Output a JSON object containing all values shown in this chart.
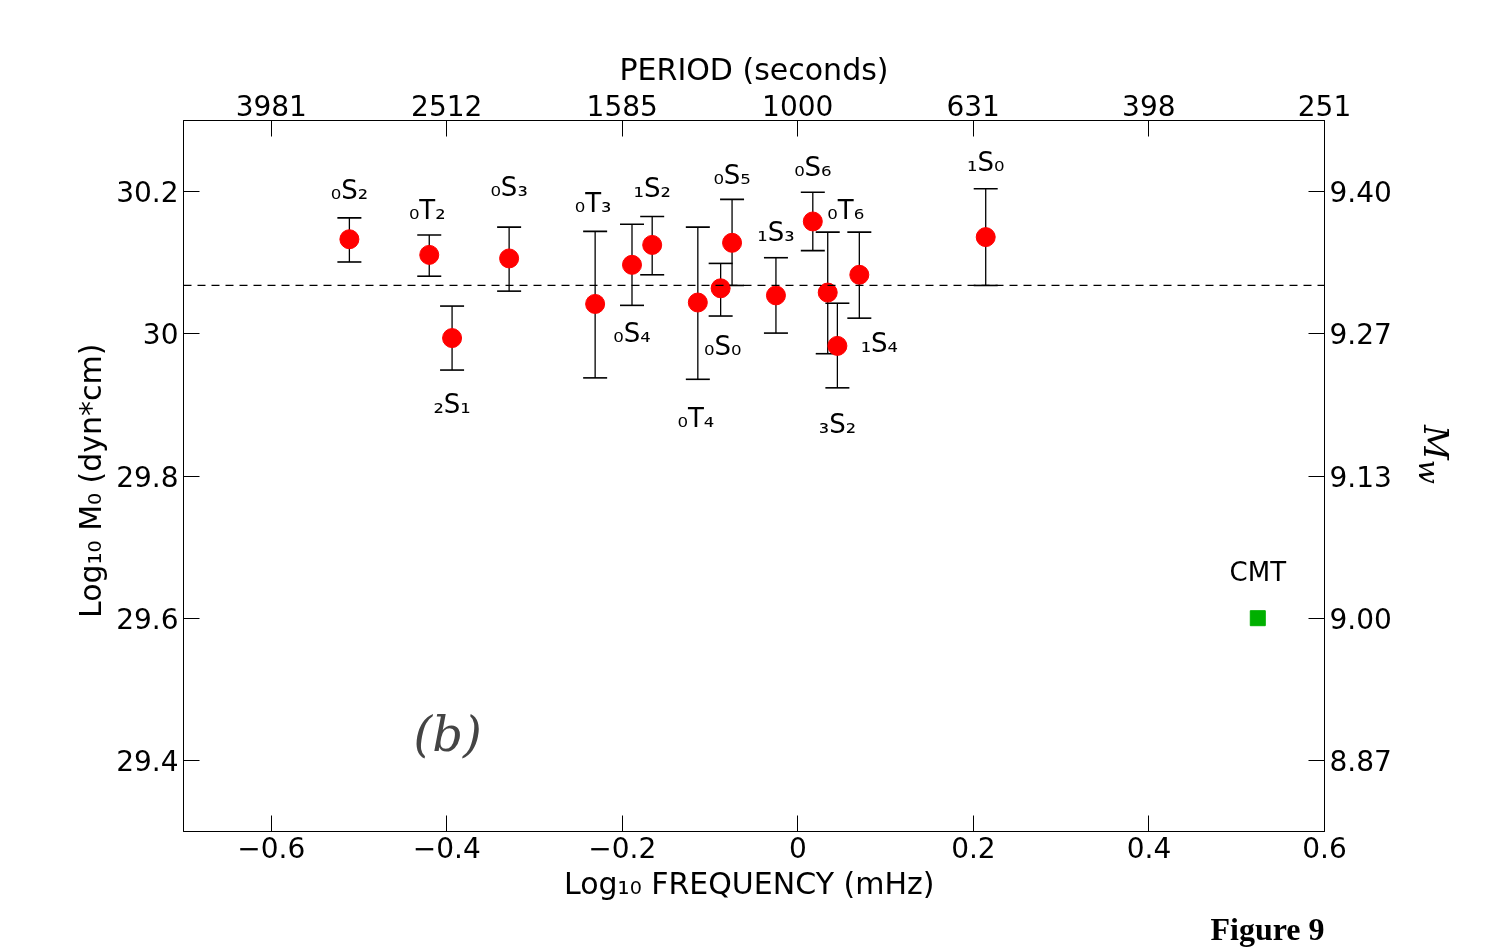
{
  "chart_data": {
    "type": "scatter",
    "xlabel": "Log₁₀  FREQUENCY (mHz)",
    "ylabel": "Log₁₀ M₀  (dyn*cm)",
    "x2label": "PERIOD (seconds)",
    "y2label": "M$_{w}$",
    "xlim": [
      -0.7,
      0.6
    ],
    "ylim": [
      29.3,
      30.3
    ],
    "xticks": [
      {
        "value": -0.6,
        "label": "−0.6"
      },
      {
        "value": -0.4,
        "label": "−0.4"
      },
      {
        "value": -0.2,
        "label": "−0.2"
      },
      0,
      0.2,
      0.4,
      0.6
    ],
    "yticks": [
      29.4,
      29.6,
      29.8,
      30,
      30.2
    ],
    "x2lim": [
      5012,
      251
    ],
    "x2ticks": [
      3981,
      2512,
      1585,
      1000,
      631,
      398,
      251
    ],
    "log": "x2",
    "y2lim": [
      8.8,
      9.4667
    ],
    "y2ticks": [
      {
        "value": 8.8667,
        "label": "8.87"
      },
      {
        "value": 9.0,
        "label": "9.00"
      },
      {
        "value": 9.1333,
        "label": "9.13"
      },
      {
        "value": 9.2667,
        "label": "9.27"
      },
      {
        "value": 9.4,
        "label": "9.40"
      }
    ],
    "grid": false,
    "series": [
      {
        "color": "#ff0000",
        "marker": "circle",
        "x": [
          -0.511,
          -0.42,
          -0.394,
          -0.329,
          -0.231,
          -0.189,
          -0.166,
          -0.114,
          -0.088,
          -0.075,
          -0.025,
          0.017,
          0.034,
          0.045,
          0.07,
          0.214
        ],
        "values": [
          30.133,
          30.111,
          29.994,
          30.106,
          30.042,
          30.097,
          30.125,
          30.044,
          30.064,
          30.128,
          30.054,
          30.158,
          30.058,
          29.983,
          30.083,
          30.136
        ],
        "errors": [
          [
            30.101,
            30.163
          ],
          [
            30.081,
            30.139
          ],
          [
            29.949,
            30.039
          ],
          [
            30.06,
            30.15
          ],
          [
            29.938,
            30.144
          ],
          [
            30.04,
            30.154
          ],
          [
            30.083,
            30.165
          ],
          [
            29.936,
            30.15
          ],
          [
            30.025,
            30.099
          ],
          [
            30.068,
            30.189
          ],
          [
            30.001,
            30.107
          ],
          [
            30.117,
            30.199
          ],
          [
            29.972,
            30.143
          ],
          [
            29.924,
            30.043
          ],
          [
            30.022,
            30.143
          ],
          [
            30.068,
            30.204
          ]
        ]
      },
      {
        "color": "#00b000",
        "marker": "square",
        "x": [
          0.524
        ],
        "values": [
          29.6
        ]
      }
    ],
    "ref_lines": [
      {
        "axis": "y",
        "value": 30.068,
        "line_style": "dashed",
        "color": "#000000"
      }
    ],
    "annotations": [
      {
        "text": "₀S₂",
        "x": -0.511,
        "y": 30.133
      },
      {
        "text": "₀T₂",
        "x": -0.42,
        "y": 30.111
      },
      {
        "text": "₂S₁",
        "x": -0.394,
        "y": 29.994
      },
      {
        "text": "₀S₃",
        "x": -0.329,
        "y": 30.106
      },
      {
        "text": "₀T₃",
        "x": -0.231,
        "y": 30.144
      },
      {
        "text": "₀S₄",
        "x": -0.189,
        "y": 30.097
      },
      {
        "text": "₁S₂",
        "x": -0.166,
        "y": 30.125
      },
      {
        "text": "₀T₄",
        "x": -0.114,
        "y": 29.936
      },
      {
        "text": "₀S₀",
        "x": -0.088,
        "y": 30.064
      },
      {
        "text": "₀S₅",
        "x": -0.075,
        "y": 30.128
      },
      {
        "text": "₁S₃",
        "x": -0.025,
        "y": 30.054
      },
      {
        "text": "₀S₆",
        "x": 0.017,
        "y": 30.158
      },
      {
        "text": "₀T₆",
        "x": 0.034,
        "y": 30.058
      },
      {
        "text": "₃S₂",
        "x": 0.045,
        "y": 29.983
      },
      {
        "text": "₁S₄",
        "x": 0.07,
        "y": 30.083
      },
      {
        "text": "₁S₀",
        "x": 0.214,
        "y": 30.136
      },
      {
        "text": "CMT",
        "x": 0.524,
        "y": 29.6
      },
      "(b)",
      "Figure 9"
    ]
  }
}
